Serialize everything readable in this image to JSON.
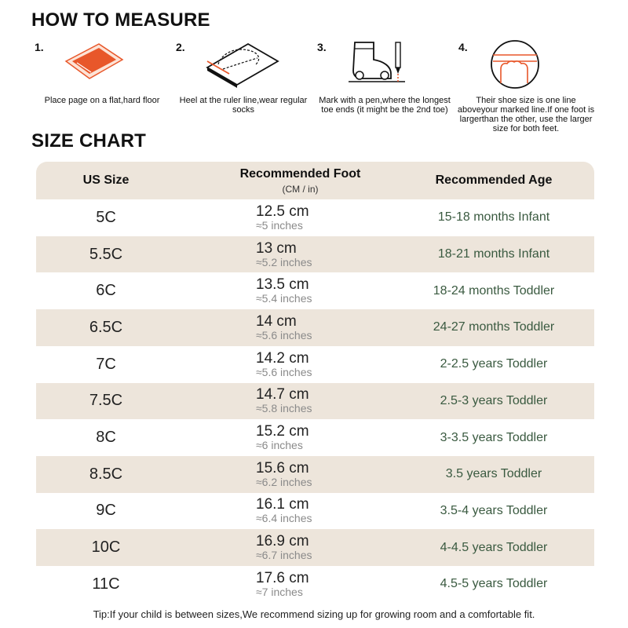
{
  "how_to_measure": {
    "title": "HOW TO MEASURE",
    "steps": [
      {
        "num": "1.",
        "icon": "paper-on-floor-icon",
        "caption": "Place page on a flat,hard floor"
      },
      {
        "num": "2.",
        "icon": "heel-on-ruler-icon",
        "caption": "Heel at the ruler line,wear regular socks"
      },
      {
        "num": "3.",
        "icon": "sock-and-pen-icon",
        "caption": "Mark with a pen,where the longest toe ends (it might be the 2nd toe)"
      },
      {
        "num": "4.",
        "icon": "toe-marked-line-icon",
        "caption": "Their shoe size is one line aboveyour marked line.If one foot is largerthan the other, use the larger size for both feet."
      }
    ]
  },
  "size_chart": {
    "title": "SIZE CHART",
    "headers": {
      "size": "US Size",
      "foot": "Recommended Foot",
      "foot_sub": "(CM / in)",
      "age": "Recommended Age"
    },
    "rows": [
      {
        "size": "5C",
        "cm": "12.5 cm",
        "inches": "≈5 inches",
        "age": "15-18 months Infant"
      },
      {
        "size": "5.5C",
        "cm": "13 cm",
        "inches": "≈5.2 inches",
        "age": "18-21 months Infant"
      },
      {
        "size": "6C",
        "cm": "13.5 cm",
        "inches": "≈5.4 inches",
        "age": "18-24 months Toddler"
      },
      {
        "size": "6.5C",
        "cm": "14 cm",
        "inches": "≈5.6 inches",
        "age": "24-27 months Toddler"
      },
      {
        "size": "7C",
        "cm": "14.2 cm",
        "inches": "≈5.6 inches",
        "age": "2-2.5 years Toddler"
      },
      {
        "size": "7.5C",
        "cm": "14.7 cm",
        "inches": "≈5.8 inches",
        "age": "2.5-3 years Toddler"
      },
      {
        "size": "8C",
        "cm": "15.2 cm",
        "inches": "≈6 inches",
        "age": "3-3.5 years Toddler"
      },
      {
        "size": "8.5C",
        "cm": "15.6 cm",
        "inches": "≈6.2 inches",
        "age": "3.5 years Toddler"
      },
      {
        "size": "9C",
        "cm": "16.1 cm",
        "inches": "≈6.4 inches",
        "age": "3.5-4 years Toddler"
      },
      {
        "size": "10C",
        "cm": "16.9 cm",
        "inches": "≈6.7 inches",
        "age": "4-4.5 years Toddler"
      },
      {
        "size": "11C",
        "cm": "17.6 cm",
        "inches": "≈7 inches",
        "age": "4.5-5 years Toddler"
      }
    ]
  },
  "tip": "Tip:If your child is between sizes,We recommend sizing up for growing room and a comfortable fit.",
  "colors": {
    "accent": "#e8572a",
    "row_shade": "#ede5db",
    "age_text": "#3a5a40"
  }
}
